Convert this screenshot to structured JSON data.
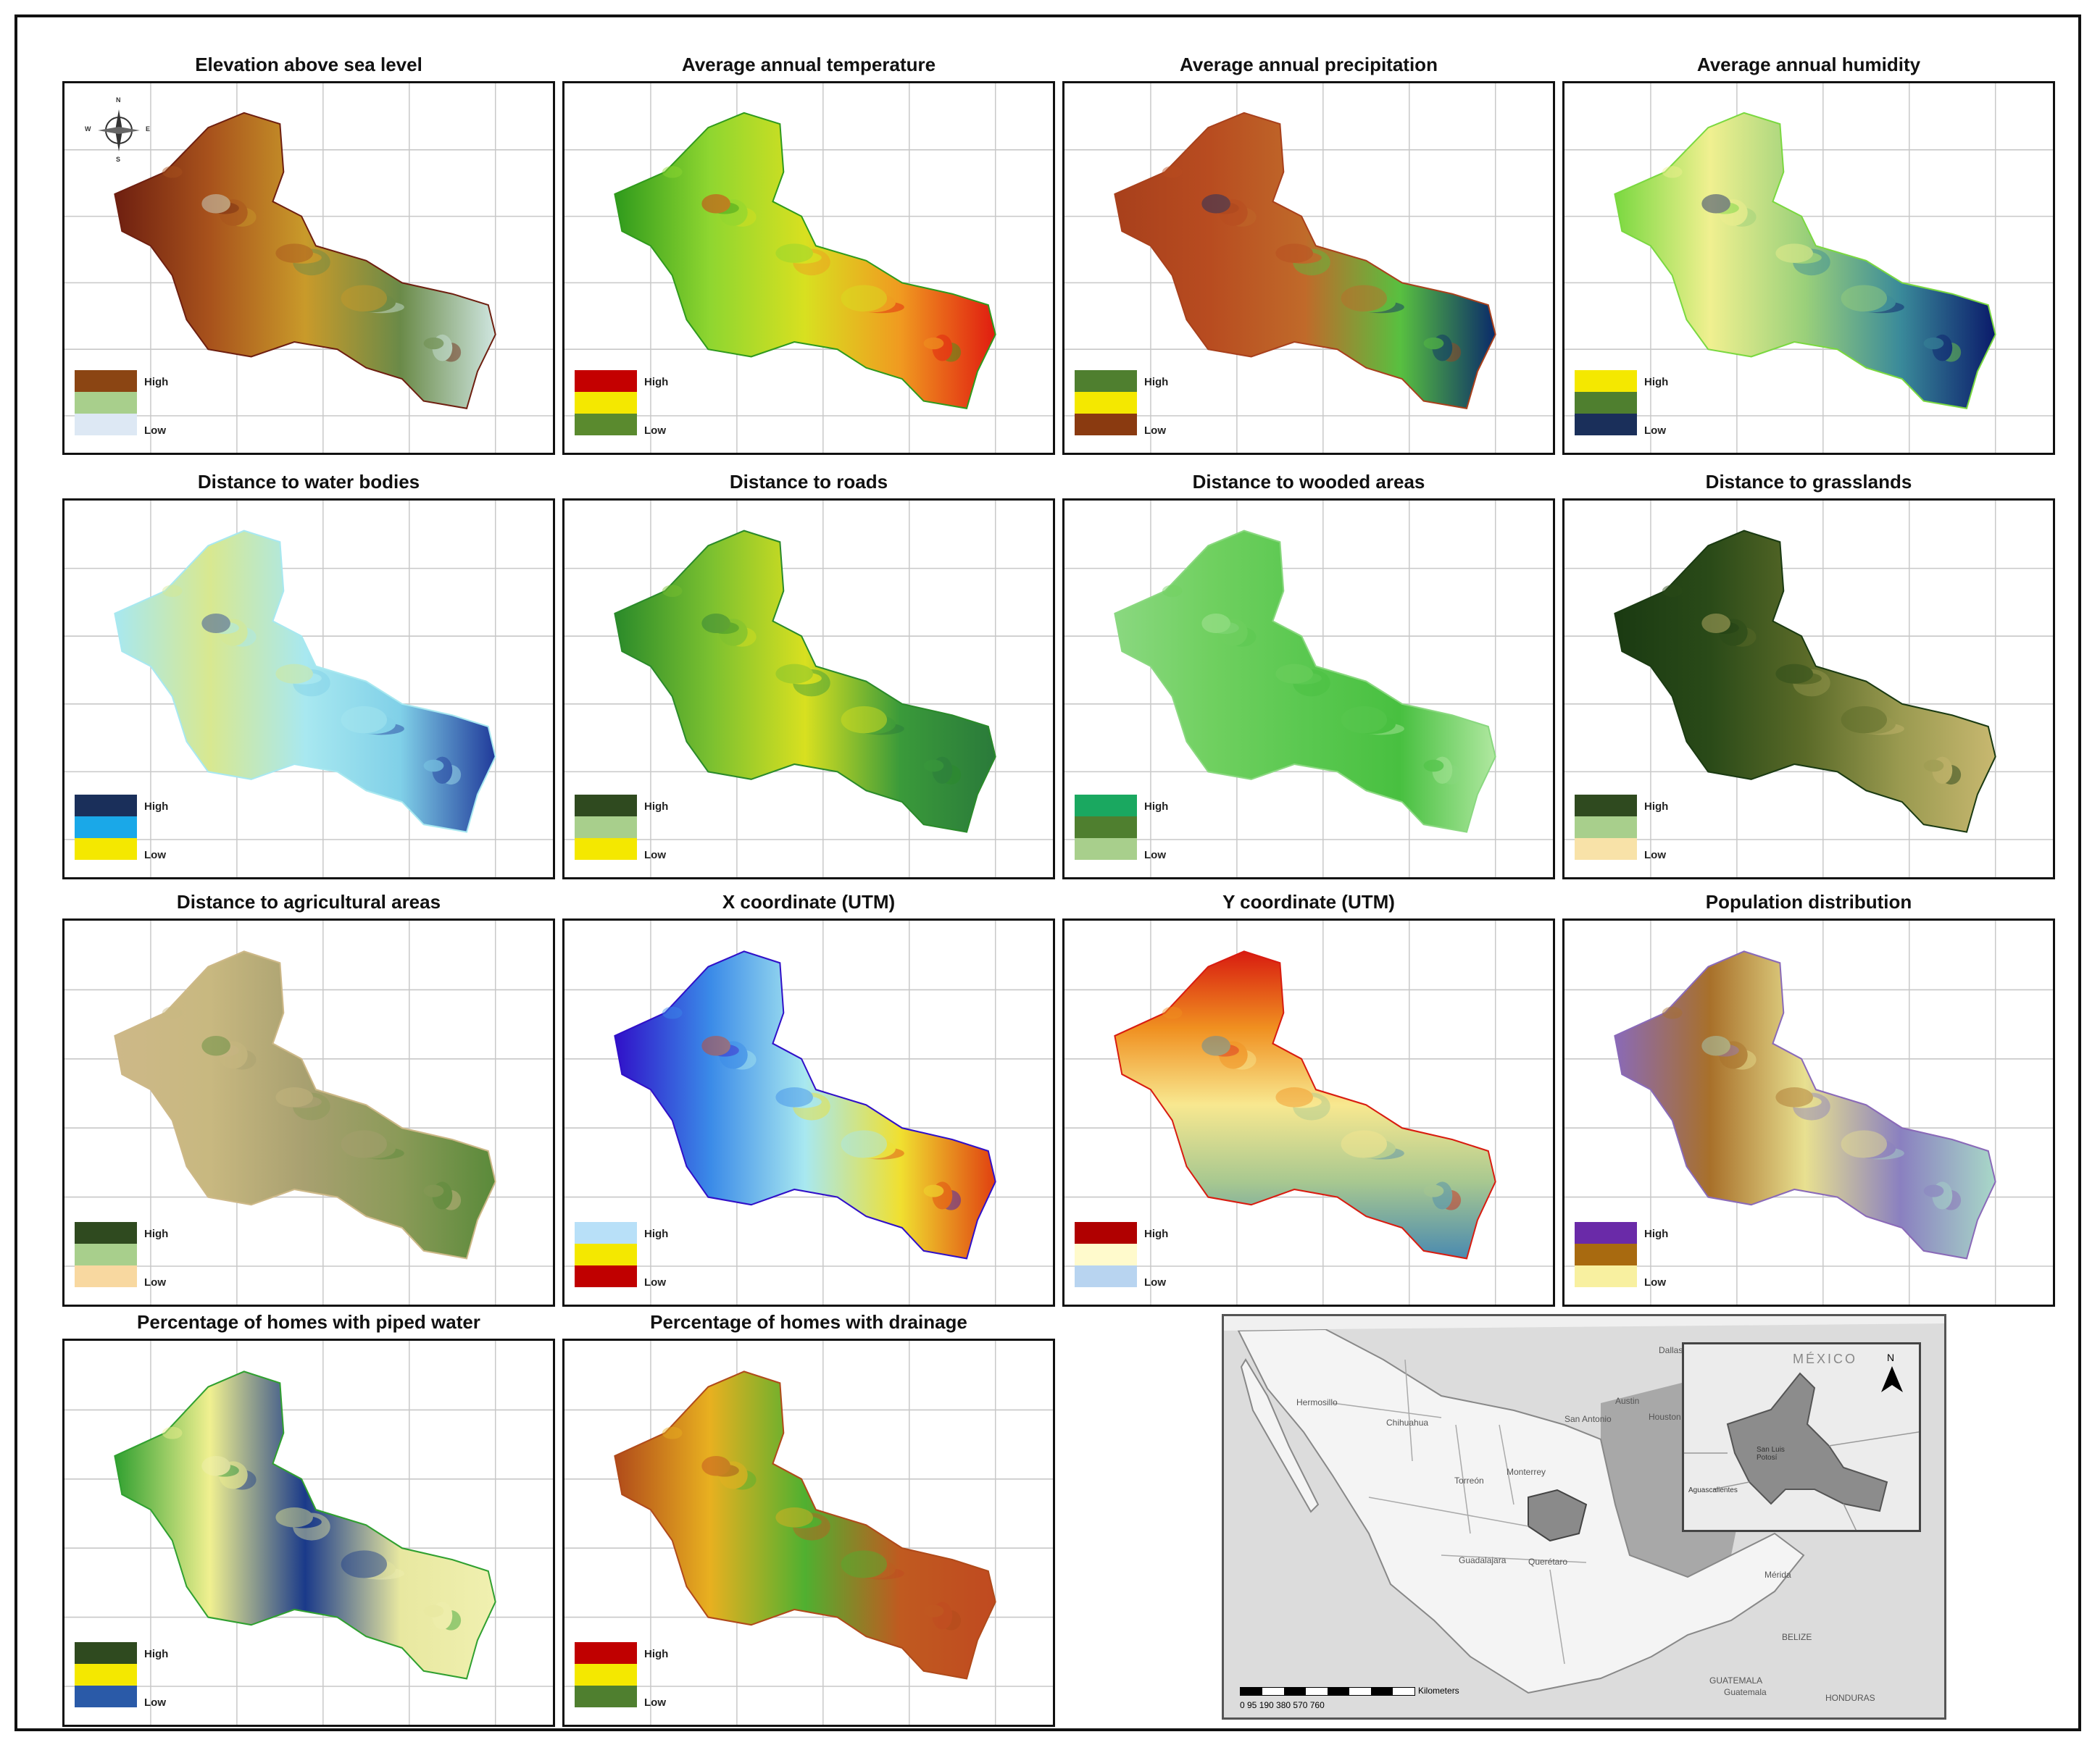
{
  "panels": [
    {
      "title": "Elevation above sea level",
      "legend": {
        "high": "High",
        "low": "Low",
        "colors": [
          "#8b4513",
          "#a8cf8c",
          "#dde8f4"
        ]
      },
      "fill": [
        "#6e1f10",
        "#a8521c",
        "#c99a2a",
        "#6a8a48",
        "#cfe6e0"
      ],
      "compass": {
        "n": "N",
        "s": "S",
        "e": "E",
        "w": "W"
      }
    },
    {
      "title": "Average annual temperature",
      "legend": {
        "high": "High",
        "low": "Low",
        "colors": [
          "#c40000",
          "#f4e800",
          "#5a8a2e"
        ]
      },
      "fill": [
        "#2f9a1c",
        "#8fd630",
        "#d8e020",
        "#f09a20",
        "#e01c10"
      ]
    },
    {
      "title": "Average annual precipitation",
      "legend": {
        "high": "High",
        "low": "Low",
        "colors": [
          "#4f7f2f",
          "#f4e800",
          "#8a3a10"
        ]
      },
      "fill": [
        "#a8401c",
        "#b84c20",
        "#c06a2a",
        "#58c040",
        "#0a2a6a"
      ]
    },
    {
      "title": "Average annual humidity",
      "legend": {
        "high": "High",
        "low": "Low",
        "colors": [
          "#f4e800",
          "#4f7f2f",
          "#1a2f5a"
        ]
      },
      "fill": [
        "#7ad840",
        "#f0f090",
        "#9ad07a",
        "#3a8a9a",
        "#0a1a6a"
      ]
    },
    {
      "title": "Distance to water bodies",
      "legend": {
        "high": "High",
        "low": "Low",
        "colors": [
          "#1a2f5a",
          "#1aa8e8",
          "#f4e800"
        ]
      },
      "fill": [
        "#a8e8f0",
        "#d8e890",
        "#a8e8f0",
        "#80d0e8",
        "#203a9a"
      ]
    },
    {
      "title": "Distance to roads",
      "legend": {
        "high": "High",
        "low": "Low",
        "colors": [
          "#2f4a1f",
          "#a8cf8c",
          "#f4e800"
        ]
      },
      "fill": [
        "#2a8a2a",
        "#7ac030",
        "#d8e020",
        "#3a9a3a",
        "#2a7a3a"
      ]
    },
    {
      "title": "Distance to wooded areas",
      "legend": {
        "high": "High",
        "low": "Low",
        "colors": [
          "#1aa860",
          "#4f7f2f",
          "#a8cf8c"
        ]
      },
      "fill": [
        "#8ad880",
        "#70d060",
        "#5ac850",
        "#48c040",
        "#b0e8a0"
      ]
    },
    {
      "title": "Distance to grasslands",
      "legend": {
        "high": "High",
        "low": "Low",
        "colors": [
          "#2f4a1f",
          "#a8cf8c",
          "#f8e2a8"
        ]
      },
      "fill": [
        "#1a3a12",
        "#2a4a18",
        "#5a6a28",
        "#9a9a50",
        "#c8b870"
      ]
    },
    {
      "title": "Distance to agricultural areas",
      "legend": {
        "high": "High",
        "low": "Low",
        "colors": [
          "#2f4a1f",
          "#a8cf8c",
          "#f8d8a0"
        ]
      },
      "fill": [
        "#cdb888",
        "#c8b880",
        "#a8a070",
        "#8a9a58",
        "#5a8a3a"
      ]
    },
    {
      "title": "X coordinate (UTM)",
      "legend": {
        "high": "High",
        "low": "Low",
        "colors": [
          "#b8e0f8",
          "#f4e800",
          "#c00000"
        ]
      },
      "fill": [
        "#3010c8",
        "#3a8ae8",
        "#a8e8f0",
        "#f0e030",
        "#e04010"
      ]
    },
    {
      "title": "Y coordinate (UTM)",
      "legend": {
        "high": "High",
        "low": "Low",
        "colors": [
          "#b00000",
          "#fffacc",
          "#b8d4f0"
        ]
      },
      "fill": [
        "#d81c10",
        "#f09020",
        "#f8e890",
        "#a8c890",
        "#4a8ab0"
      ]
    },
    {
      "title": "Population distribution",
      "legend": {
        "high": "High",
        "low": "Low",
        "colors": [
          "#6a2aa8",
          "#a86a10",
          "#f8f0a0"
        ]
      },
      "fill": [
        "#8a6ab8",
        "#a8702a",
        "#e8e090",
        "#8a80c0",
        "#a8d8c8"
      ]
    },
    {
      "title": "Percentage of homes with piped water",
      "legend": {
        "high": "High",
        "low": "Low",
        "colors": [
          "#2f4a1f",
          "#f4e800",
          "#2a5aa8"
        ]
      },
      "fill": [
        "#30a030",
        "#f0f090",
        "#1a3a8a",
        "#e8e8a0",
        "#f0f0b0"
      ]
    },
    {
      "title": "Percentage of homes with drainage",
      "legend": {
        "high": "High",
        "low": "Low",
        "colors": [
          "#c00000",
          "#f4e800",
          "#4f7f2f"
        ]
      },
      "fill": [
        "#b04a1a",
        "#e8b020",
        "#50b030",
        "#c05a20",
        "#c04a20"
      ]
    }
  ],
  "inset_map": {
    "country_label": "MÉXICO",
    "north": "N",
    "scale": {
      "numbers": "0 95 190    380    570    760",
      "unit": "Kilometers"
    },
    "labels": [
      "Dallas",
      "Austin",
      "San Antonio",
      "Houston",
      "Hermosillo",
      "Chihuahua",
      "Monterrey",
      "Torreón",
      "Guadalajara",
      "Querétaro",
      "Mérida",
      "BELIZE",
      "GUATEMALA",
      "Guatemala",
      "HONDURAS",
      "San Luis Potosí",
      "Aguascalientes"
    ]
  },
  "colors": {
    "frame": "#111111",
    "inset_land": "#f4f4f4",
    "inset_water": "#a8a8a8",
    "inset_state": "#8a8a8a"
  }
}
